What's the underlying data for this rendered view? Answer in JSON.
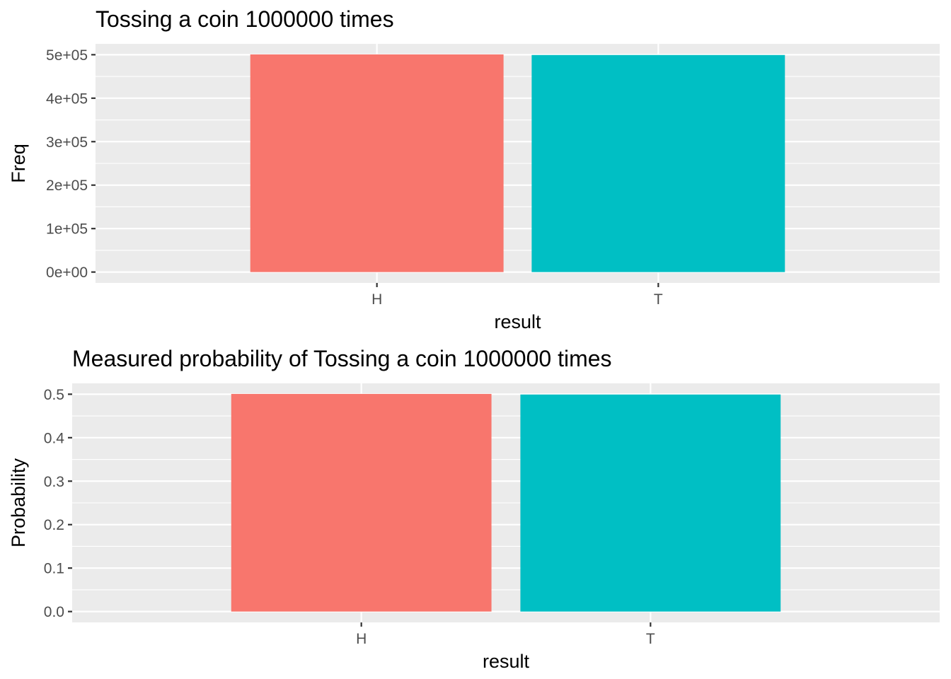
{
  "chart_data": [
    {
      "type": "bar",
      "title": "Tossing a coin 1000000 times",
      "xlabel": "result",
      "ylabel": "Freq",
      "categories": [
        "H",
        "T"
      ],
      "values": [
        500700,
        499300
      ],
      "colors": [
        "#F8766D",
        "#00BFC4"
      ],
      "ylim": [
        -25000,
        525000
      ],
      "yticks": [
        0,
        100000,
        200000,
        300000,
        400000,
        500000
      ],
      "ytick_labels": [
        "0e+00",
        "1e+05",
        "2e+05",
        "3e+05",
        "4e+05",
        "5e+05"
      ],
      "grid": true,
      "panel_background": "#EBEBEB"
    },
    {
      "type": "bar",
      "title": "Measured probability of Tossing a coin 1000000 times",
      "xlabel": "result",
      "ylabel": "Probability",
      "categories": [
        "H",
        "T"
      ],
      "values": [
        0.5007,
        0.4993
      ],
      "colors": [
        "#F8766D",
        "#00BFC4"
      ],
      "ylim": [
        -0.025,
        0.525
      ],
      "yticks": [
        0,
        0.1,
        0.2,
        0.3,
        0.4,
        0.5
      ],
      "ytick_labels": [
        "0.0",
        "0.1",
        "0.2",
        "0.3",
        "0.4",
        "0.5"
      ],
      "grid": true,
      "panel_background": "#EBEBEB"
    }
  ]
}
